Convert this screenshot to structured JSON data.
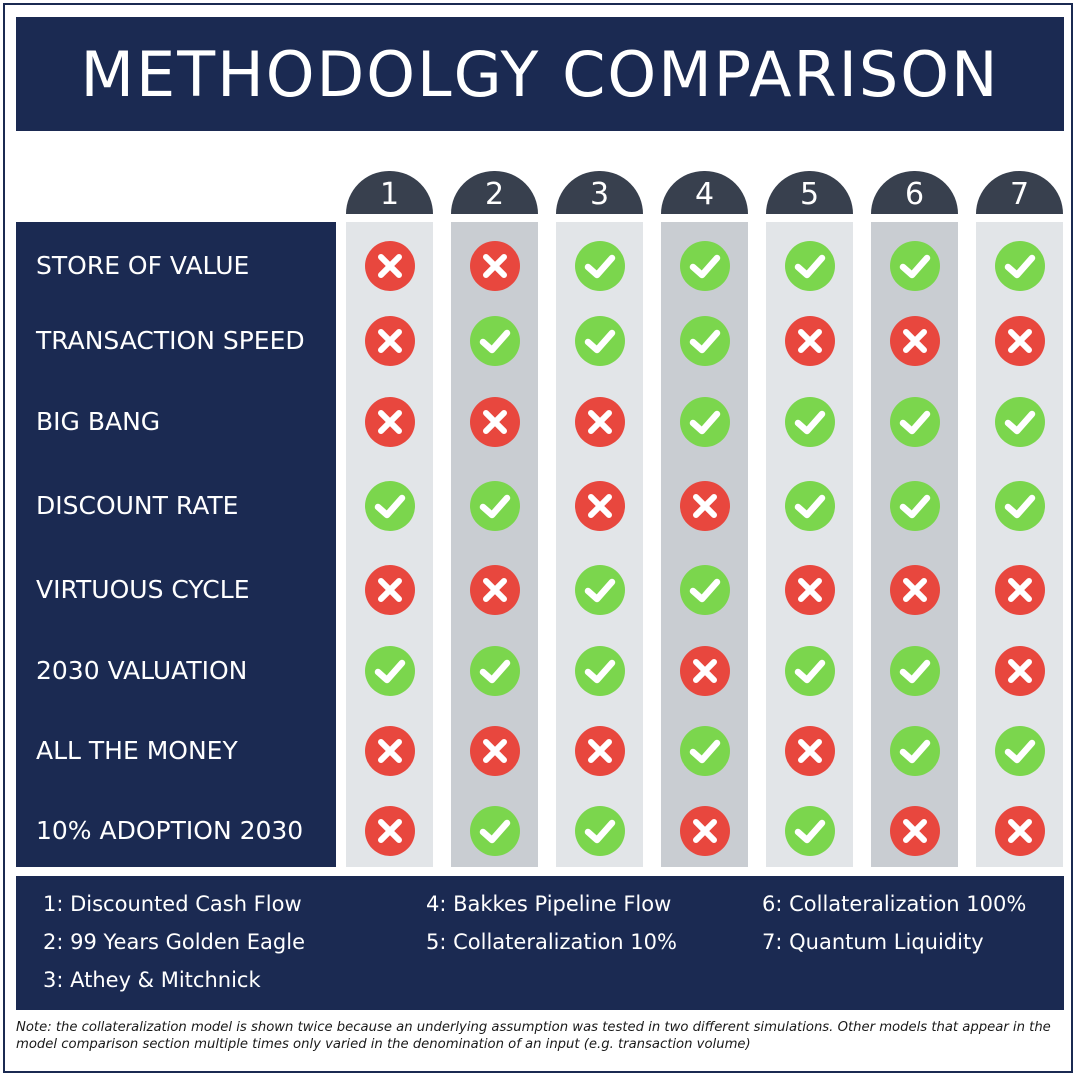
{
  "title": "METHODOLGY COMPARISON",
  "colors": {
    "navy": "#1b2a52",
    "tab": "#38404e",
    "column_light": "#e2e5e8",
    "column_dark": "#c9cdd2",
    "check": "#7bd64d",
    "cross": "#e8473e"
  },
  "chart_data": {
    "type": "table",
    "columns": [
      "1",
      "2",
      "3",
      "4",
      "5",
      "6",
      "7"
    ],
    "rows": [
      {
        "label": "STORE OF VALUE",
        "values": [
          false,
          false,
          true,
          true,
          true,
          true,
          true
        ]
      },
      {
        "label": "TRANSACTION SPEED",
        "values": [
          false,
          true,
          true,
          true,
          false,
          false,
          false
        ]
      },
      {
        "label": "BIG BANG",
        "values": [
          false,
          false,
          false,
          true,
          true,
          true,
          true
        ]
      },
      {
        "label": "DISCOUNT RATE",
        "values": [
          true,
          true,
          false,
          false,
          true,
          true,
          true
        ]
      },
      {
        "label": "VIRTUOUS CYCLE",
        "values": [
          false,
          false,
          true,
          true,
          false,
          false,
          false
        ]
      },
      {
        "label": "2030 VALUATION",
        "values": [
          true,
          true,
          true,
          false,
          true,
          true,
          false
        ]
      },
      {
        "label": "ALL THE MONEY",
        "values": [
          false,
          false,
          false,
          true,
          false,
          true,
          true
        ]
      },
      {
        "label": "10% ADOPTION 2030",
        "values": [
          false,
          true,
          true,
          false,
          true,
          false,
          false
        ]
      }
    ],
    "mark_icons": {
      "true": "check-circle-icon",
      "false": "cross-circle-icon"
    }
  },
  "legend": [
    "1: Discounted Cash Flow",
    "2: 99 Years Golden Eagle",
    "3: Athey & Mitchnick",
    "4: Bakkes Pipeline Flow",
    "5: Collateralization 10%",
    "6: Collateralization 100%",
    "7: Quantum Liquidity"
  ],
  "note": "Note: the collateralization model is shown twice because an underlying assumption was tested in two different simulations. Other models that appear in the model comparison section multiple times only varied in the denomination of an input (e.g. transaction volume)"
}
